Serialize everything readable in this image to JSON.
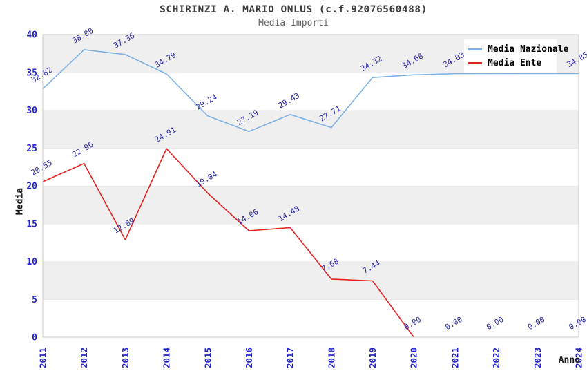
{
  "header": {
    "title": "SCHIRINZI A. MARIO ONLUS (c.f.92076560488)",
    "subtitle": "Media Importi"
  },
  "chart_data": {
    "type": "line",
    "title": "SCHIRINZI A. MARIO ONLUS (c.f.92076560488)",
    "subtitle": "Media Importi",
    "xlabel": "Anno",
    "ylabel": "Media",
    "x": [
      "2011",
      "2012",
      "2013",
      "2014",
      "2015",
      "2016",
      "2017",
      "2018",
      "2019",
      "2020",
      "2021",
      "2022",
      "2023",
      "2024"
    ],
    "ylim": [
      0,
      40
    ],
    "y_ticks": [
      0,
      5,
      10,
      15,
      20,
      25,
      30,
      35,
      40
    ],
    "legend_position": "top-right",
    "grid": "alternating-bands",
    "band_colors": [
      "#efefef",
      "#ffffff"
    ],
    "plot_border_color": "#c9c9c9",
    "band_line_color": "#e4e4e4",
    "point_label_color": "#2a2aa6",
    "tick_label_color": "#2424cc",
    "series": [
      {
        "name": "Media Nazionale",
        "color": "#7fb1e3",
        "values": [
          32.82,
          38.0,
          37.36,
          34.79,
          29.24,
          27.19,
          29.43,
          27.71,
          34.32,
          34.68,
          34.83,
          34.84,
          34.85,
          34.85
        ],
        "labels": [
          "32.82",
          "38.00",
          "37.36",
          "34.79",
          "29.24",
          "27.19",
          "29.43",
          "27.71",
          "34.32",
          "34.68",
          "34.83",
          "34.84",
          "34.85",
          "34.85"
        ]
      },
      {
        "name": "Media Ente",
        "color": "#e52222",
        "values": [
          20.55,
          22.96,
          12.89,
          24.91,
          19.04,
          14.06,
          14.48,
          7.68,
          7.44,
          0.0,
          0.0,
          0.0,
          0.0,
          0.0
        ],
        "labels": [
          "20.55",
          "22.96",
          "12.89",
          "24.91",
          "19.04",
          "14.06",
          "14.48",
          "7.68",
          "7.44",
          "0.00",
          "0.00",
          "0.00",
          "0.00",
          "0.00"
        ],
        "line_end_index": 9
      }
    ]
  }
}
